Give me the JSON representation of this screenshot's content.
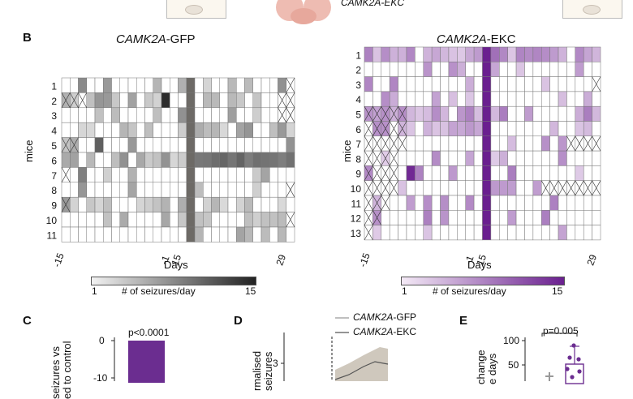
{
  "panels": {
    "B": {
      "letter": "B",
      "gfp": {
        "title_gene": "CAMK2A",
        "title_suffix": "-GFP",
        "ylabel": "mice",
        "rows": [
          "1",
          "2",
          "3",
          "4",
          "5",
          "6",
          "7",
          "8",
          "9",
          "10",
          "11"
        ],
        "xticks": [
          "-15",
          "-1",
          "15",
          "29"
        ],
        "xlabel": "Days",
        "colorbar": {
          "min": "1",
          "max": "15",
          "label": "# of seizures/day",
          "start_color": "#f2f2f2",
          "end_color": "#222222"
        }
      },
      "ekc": {
        "title_gene": "CAMK2A",
        "title_suffix": "-EKC",
        "ylabel": "mice",
        "rows": [
          "1",
          "2",
          "3",
          "4",
          "5",
          "6",
          "7",
          "8",
          "9",
          "10",
          "11",
          "12",
          "13"
        ],
        "xticks": [
          "-15",
          "-1",
          "15",
          "29"
        ],
        "xlabel": "Days",
        "colorbar": {
          "min": "1",
          "max": "15",
          "label": "# of seizures/day",
          "start_color": "#f4eaf6",
          "end_color": "#6a1f8f"
        }
      }
    },
    "C": {
      "letter": "C",
      "ylabel": "seizures vs\ned to control",
      "yticks": [
        "0",
        "-10"
      ],
      "annotation": "p<0.0001",
      "bar_color": "#6b2d90"
    },
    "D": {
      "letter": "D",
      "ylabel": "rmalised\nseizures",
      "ytick": "3",
      "legend": [
        {
          "gene": "CAMK2A",
          "suffix": "-GFP",
          "color": "#999999"
        },
        {
          "gene": "CAMK2A",
          "suffix": "-EKC",
          "color": "#555555"
        }
      ]
    },
    "E": {
      "letter": "E",
      "ylabel": "change\ne days",
      "yticks": [
        "100",
        "50"
      ],
      "annotation": "p=0.005",
      "ekc_color": "#6b2d90"
    },
    "A_fragment": {
      "label": "CAMK2A-EKC"
    }
  }
}
